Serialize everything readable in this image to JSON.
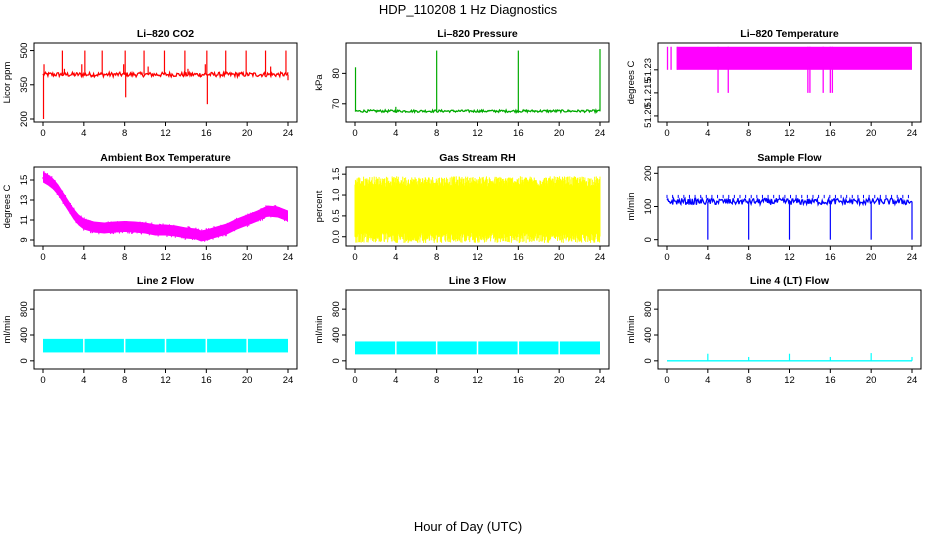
{
  "figure": {
    "title": "HDP_110208  1 Hz Diagnostics",
    "xlabel": "Hour of Day (UTC)"
  },
  "chart_data": [
    {
      "type": "line",
      "title": "Li–820 CO2",
      "ylabel": "Licor ppm",
      "color": "#ff0000",
      "xlim": [
        0,
        24
      ],
      "ylim": [
        200,
        520
      ],
      "xticks": [
        "0",
        "4",
        "8",
        "12",
        "16",
        "20",
        "24"
      ],
      "yticks": [
        {
          "v": 200,
          "label": "200"
        },
        {
          "v": 350,
          "label": "350"
        },
        {
          "v": 500,
          "label": "500"
        }
      ],
      "series": [
        {
          "name": "CO2",
          "style": "baseline",
          "base": 395,
          "lo": 385,
          "hi": 405,
          "spikes": [
            [
              0.05,
              200
            ],
            [
              0.1,
              440
            ],
            [
              1.9,
              500
            ],
            [
              2.1,
              420
            ],
            [
              3.8,
              440
            ],
            [
              4.1,
              500
            ],
            [
              5.8,
              500
            ],
            [
              7.9,
              440
            ],
            [
              8.05,
              500
            ],
            [
              8.1,
              295
            ],
            [
              9.9,
              500
            ],
            [
              10.3,
              430
            ],
            [
              11.9,
              500
            ],
            [
              13.9,
              500
            ],
            [
              14.2,
              420
            ],
            [
              15.9,
              440
            ],
            [
              16.05,
              500
            ],
            [
              16.1,
              265
            ],
            [
              17.9,
              500
            ],
            [
              19.9,
              500
            ],
            [
              21.8,
              500
            ],
            [
              22.3,
              430
            ],
            [
              23.8,
              500
            ],
            [
              24,
              370
            ]
          ]
        }
      ]
    },
    {
      "type": "line",
      "title": "Li–820 Pressure",
      "ylabel": "kPa",
      "color": "#00aa00",
      "xlim": [
        0,
        24
      ],
      "ylim": [
        65,
        89
      ],
      "xticks": [
        "0",
        "4",
        "8",
        "12",
        "16",
        "20",
        "24"
      ],
      "yticks": [
        {
          "v": 70,
          "label": "70"
        },
        {
          "v": 80,
          "label": "80"
        }
      ],
      "series": [
        {
          "name": "Pressure",
          "style": "baseline",
          "base": 67.5,
          "lo": 67.2,
          "hi": 68.0,
          "spikes": [
            [
              0.05,
              82
            ],
            [
              4.0,
              69
            ],
            [
              8.0,
              87.5
            ],
            [
              16.0,
              87.5
            ],
            [
              24.0,
              88
            ]
          ]
        }
      ]
    },
    {
      "type": "line",
      "title": "Li–820 Temperature",
      "ylabel": "degrees C",
      "color": "#ff00ff",
      "xlim": [
        0,
        24
      ],
      "ylim": [
        51.198,
        51.2455
      ],
      "xticks": [
        "0",
        "4",
        "8",
        "12",
        "16",
        "20",
        "24"
      ],
      "yticks": [
        {
          "v": 51.2,
          "label": "51.20"
        },
        {
          "v": 51.215,
          "label": "51.215"
        },
        {
          "v": 51.23,
          "label": "51.23"
        }
      ],
      "series": [
        {
          "name": "Temperature",
          "style": "band",
          "band_lo": 51.23,
          "band_hi": 51.245,
          "x_start": 1.0,
          "x_end": 24,
          "drops": [
            [
              0.05,
              51.23
            ],
            [
              0.1,
              51.245
            ],
            [
              0.4,
              51.23
            ],
            [
              1.0,
              51.23
            ],
            [
              5.0,
              51.215
            ],
            [
              6.0,
              51.215
            ],
            [
              13.8,
              51.215
            ],
            [
              14.0,
              51.215
            ],
            [
              15.3,
              51.215
            ],
            [
              16.0,
              51.215
            ],
            [
              16.2,
              51.215
            ]
          ]
        }
      ]
    },
    {
      "type": "line",
      "title": "Ambient Box Temperature",
      "ylabel": "degrees C",
      "color": "#ff00ff",
      "xlim": [
        0,
        24
      ],
      "ylim": [
        8.7,
        16
      ],
      "xticks": [
        "0",
        "4",
        "8",
        "12",
        "16",
        "20",
        "24"
      ],
      "yticks": [
        {
          "v": 9,
          "label": "9"
        },
        {
          "v": 11,
          "label": "11"
        },
        {
          "v": 13,
          "label": "13"
        },
        {
          "v": 15,
          "label": "15"
        }
      ],
      "series": [
        {
          "name": "Box Temperature",
          "style": "curve",
          "width": 0.55,
          "x": [
            0,
            0.5,
            1,
            1.5,
            2,
            2.5,
            3,
            3.5,
            4,
            5,
            6,
            7,
            8,
            9,
            10,
            11,
            12,
            13,
            14,
            15,
            15.5,
            16,
            17,
            18,
            19,
            20,
            21,
            22,
            23,
            24
          ],
          "y": [
            15.3,
            15.0,
            14.6,
            14.0,
            13.2,
            12.4,
            11.6,
            11.0,
            10.6,
            10.3,
            10.2,
            10.3,
            10.35,
            10.3,
            10.2,
            10.0,
            10.0,
            9.9,
            9.7,
            9.6,
            9.4,
            9.5,
            9.8,
            10.1,
            10.6,
            11.0,
            11.4,
            11.9,
            11.8,
            11.4
          ]
        }
      ]
    },
    {
      "type": "line",
      "title": "Gas Stream RH",
      "ylabel": "percent",
      "color": "#ffff00",
      "xlim": [
        0,
        24
      ],
      "ylim": [
        -0.15,
        1.6
      ],
      "xticks": [
        "0",
        "4",
        "8",
        "12",
        "16",
        "20",
        "24"
      ],
      "yticks": [
        {
          "v": 0.0,
          "label": "0.0"
        },
        {
          "v": 0.5,
          "label": "0.5"
        },
        {
          "v": 1.0,
          "label": "1.0"
        },
        {
          "v": 1.5,
          "label": "1.5"
        }
      ],
      "series": [
        {
          "name": "RH",
          "style": "band",
          "band_lo": 0.1,
          "band_hi": 1.2,
          "x_start": 0,
          "x_end": 24,
          "noise": 0.25,
          "drops": []
        }
      ]
    },
    {
      "type": "line",
      "title": "Sample Flow",
      "ylabel": "ml/min",
      "color": "#0000ff",
      "xlim": [
        0,
        24
      ],
      "ylim": [
        -10,
        210
      ],
      "xticks": [
        "0",
        "4",
        "8",
        "12",
        "16",
        "20",
        "24"
      ],
      "yticks": [
        {
          "v": 0,
          "label": "0"
        },
        {
          "v": 100,
          "label": "100"
        },
        {
          "v": 200,
          "label": "200"
        }
      ],
      "series": [
        {
          "name": "Sample Flow",
          "style": "baseline",
          "base": 115,
          "lo": 105,
          "hi": 125,
          "spikes": [
            [
              4.0,
              0
            ],
            [
              8.0,
              0
            ],
            [
              12.0,
              0
            ],
            [
              16.0,
              0
            ],
            [
              20.0,
              0
            ],
            [
              24.0,
              0
            ]
          ],
          "ticks_every": 0.55,
          "tick_hi": 135
        }
      ]
    },
    {
      "type": "line",
      "title": "Line 2 Flow",
      "ylabel": "ml/min",
      "color": "#00ffff",
      "xlim": [
        0,
        24
      ],
      "ylim": [
        -80,
        1050
      ],
      "xticks": [
        "0",
        "4",
        "8",
        "12",
        "16",
        "20",
        "24"
      ],
      "yticks": [
        {
          "v": 0,
          "label": "0"
        },
        {
          "v": 400,
          "label": "400"
        },
        {
          "v": 800,
          "label": "800"
        }
      ],
      "series": [
        {
          "name": "Line 2",
          "style": "band",
          "band_lo": 130,
          "band_hi": 340,
          "x_start": 0,
          "x_end": 24,
          "noise": 0,
          "gaps": [
            4.0,
            8.0,
            12.0,
            16.0,
            20.0
          ],
          "drops": []
        }
      ]
    },
    {
      "type": "line",
      "title": "Line 3 Flow",
      "ylabel": "ml/min",
      "color": "#00ffff",
      "xlim": [
        0,
        24
      ],
      "ylim": [
        -80,
        1050
      ],
      "xticks": [
        "0",
        "4",
        "8",
        "12",
        "16",
        "20",
        "24"
      ],
      "yticks": [
        {
          "v": 0,
          "label": "0"
        },
        {
          "v": 400,
          "label": "400"
        },
        {
          "v": 800,
          "label": "800"
        }
      ],
      "series": [
        {
          "name": "Line 3",
          "style": "band",
          "band_lo": 100,
          "band_hi": 300,
          "x_start": 0,
          "x_end": 24,
          "noise": 0,
          "gaps": [
            4.0,
            8.0,
            12.0,
            16.0,
            20.0
          ],
          "drops": []
        }
      ]
    },
    {
      "type": "line",
      "title": "Line 4 (LT) Flow",
      "ylabel": "ml/min",
      "color": "#00ffff",
      "xlim": [
        0,
        24
      ],
      "ylim": [
        -80,
        1050
      ],
      "xticks": [
        "0",
        "4",
        "8",
        "12",
        "16",
        "20",
        "24"
      ],
      "yticks": [
        {
          "v": 0,
          "label": "0"
        },
        {
          "v": 400,
          "label": "400"
        },
        {
          "v": 800,
          "label": "800"
        }
      ],
      "series": [
        {
          "name": "Line 4",
          "style": "baseline",
          "base": 0,
          "lo": 0,
          "hi": 0,
          "spikes": [
            [
              4.0,
              110
            ],
            [
              8.0,
              60
            ],
            [
              12.0,
              110
            ],
            [
              16.0,
              60
            ],
            [
              20.0,
              120
            ],
            [
              24.0,
              60
            ]
          ]
        }
      ]
    }
  ]
}
